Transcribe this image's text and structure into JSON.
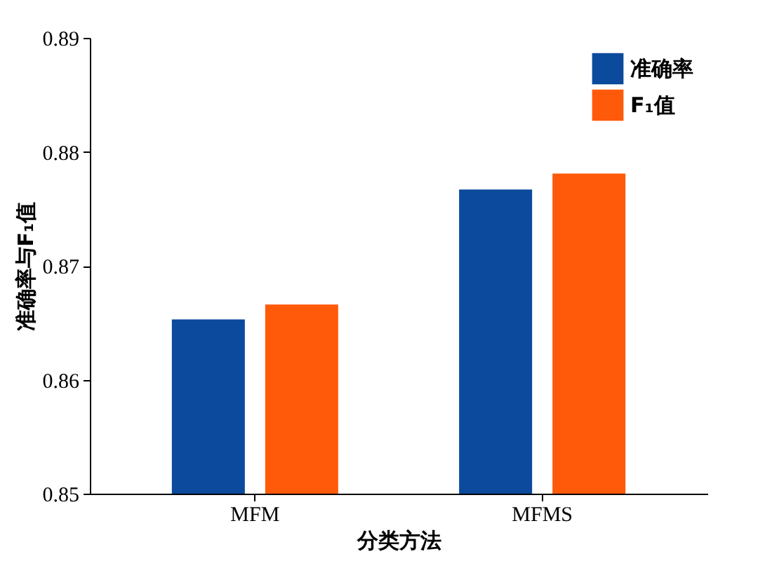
{
  "chart_data": {
    "type": "bar",
    "categories": [
      "MFM",
      "MFMS"
    ],
    "series": [
      {
        "name": "准确率",
        "color": "#0b4a9c",
        "values": [
          0.8653,
          0.8767
        ]
      },
      {
        "name": "F₁值",
        "color": "#ff5a0a",
        "values": [
          0.8666,
          0.8781
        ]
      }
    ],
    "xlabel": "分类方法",
    "ylabel": "准确率与F₁值",
    "ylim": [
      0.85,
      0.89
    ],
    "yticks": [
      0.85,
      0.86,
      0.87,
      0.88,
      0.89
    ],
    "grid": false,
    "legend": "top right"
  }
}
